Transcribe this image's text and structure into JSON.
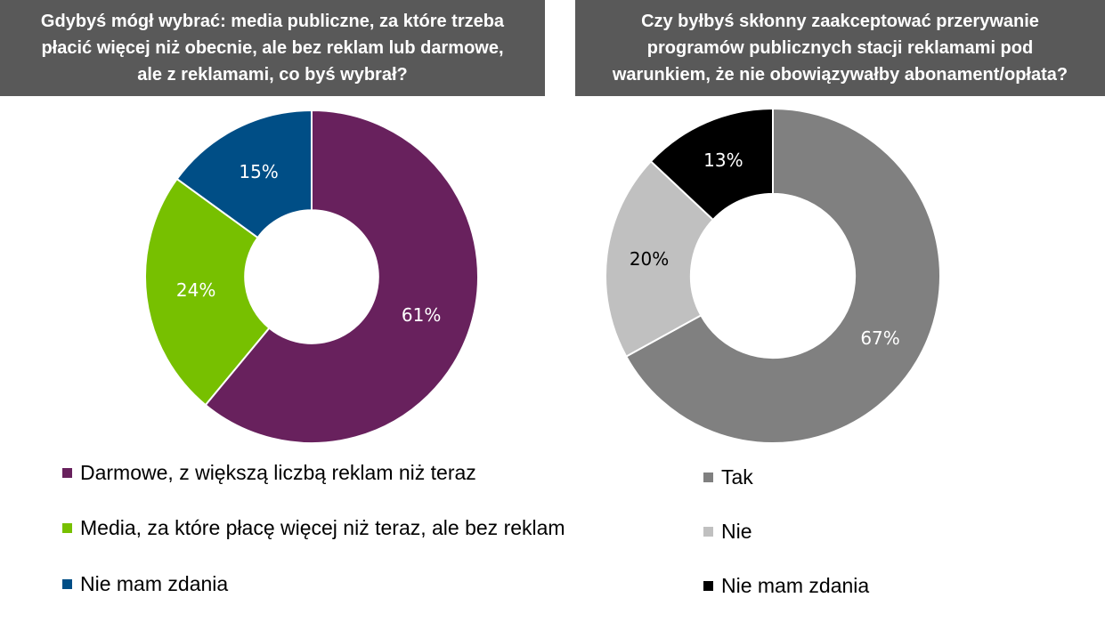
{
  "chart_data": [
    {
      "type": "pie",
      "title": "Gdybyś mógł wybrać: media publiczne, za które trzeba płacić więcej niż obecnie, ale bez reklam lub darmowe, ale z reklamami, co byś wybrał?",
      "title_lines": [
        "Gdybyś mógł wybrać: media publiczne, za które trzeba",
        "płacić więcej niż obecnie, ale bez reklam lub darmowe,",
        "ale z reklamami, co byś wybrał?"
      ],
      "donut": true,
      "legend_position": "bottom",
      "slices": [
        {
          "label": "Darmowe, z większą liczbą reklam niż teraz",
          "value": 61,
          "value_label": "61%",
          "color": "#68215D",
          "label_color": "#ffffff"
        },
        {
          "label": "Media, za które płacę więcej niż teraz, ale bez reklam",
          "value": 24,
          "value_label": "24%",
          "color": "#77C000",
          "label_color": "#ffffff"
        },
        {
          "label": "Nie mam zdania",
          "value": 15,
          "value_label": "15%",
          "color": "#004E86",
          "label_color": "#ffffff"
        }
      ]
    },
    {
      "type": "pie",
      "title": "Czy byłbyś skłonny zaakceptować przerywanie programów publicznych stacji reklamami pod warunkiem, że nie obowiązywałby abonament/opłata?",
      "title_lines": [
        "Czy byłbyś skłonny zaakceptować przerywanie",
        "programów publicznych stacji reklamami pod",
        "warunkiem, że nie obowiązywałby abonament/opłata?"
      ],
      "donut": true,
      "legend_position": "bottom",
      "slices": [
        {
          "label": "Tak",
          "value": 67,
          "value_label": "67%",
          "color": "#808080",
          "label_color": "#ffffff"
        },
        {
          "label": "Nie",
          "value": 20,
          "value_label": "20%",
          "color": "#C0C0C0",
          "label_color": "#000000"
        },
        {
          "label": "Nie mam zdania",
          "value": 13,
          "value_label": "13%",
          "color": "#000000",
          "label_color": "#ffffff"
        }
      ]
    }
  ]
}
